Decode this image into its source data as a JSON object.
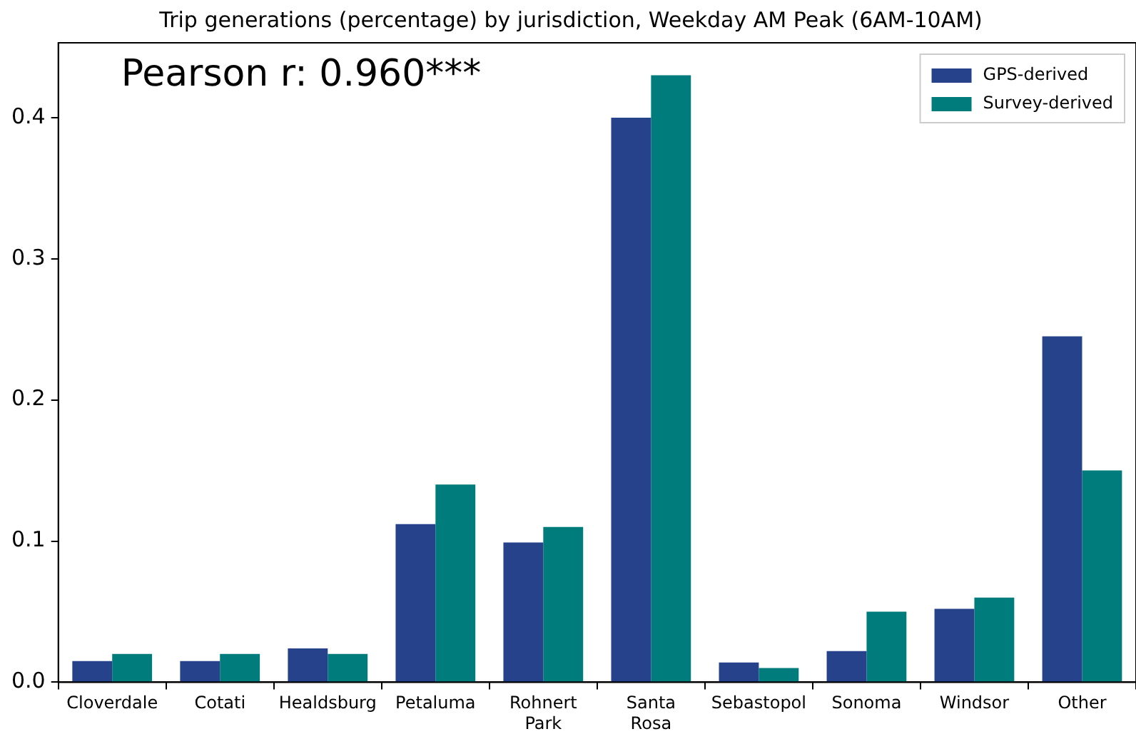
{
  "chart_data": {
    "type": "bar",
    "title": "Trip generations (percentage) by jurisdiction, Weekday AM Peak (6AM-10AM)",
    "categories": [
      "Cloverdale",
      "Cotati",
      "Healdsburg",
      "Petaluma",
      "Rohnert Park",
      "Santa Rosa",
      "Sebastopol",
      "Sonoma",
      "Windsor",
      "Other"
    ],
    "series": [
      {
        "name": "GPS-derived",
        "color": "#26428b",
        "values": [
          0.015,
          0.015,
          0.024,
          0.112,
          0.099,
          0.4,
          0.014,
          0.022,
          0.052,
          0.245
        ]
      },
      {
        "name": "Survey-derived",
        "color": "#007c7c",
        "values": [
          0.02,
          0.02,
          0.02,
          0.14,
          0.11,
          0.43,
          0.01,
          0.05,
          0.06,
          0.15
        ]
      }
    ],
    "ylim": [
      0,
      0.453
    ],
    "yticks": [
      {
        "value": 0,
        "label": "0.0"
      },
      0.1,
      0.2,
      0.3,
      0.4
    ],
    "annotations": [
      "Pearson r: 0.960***"
    ],
    "grid": false,
    "legend": "top right"
  }
}
